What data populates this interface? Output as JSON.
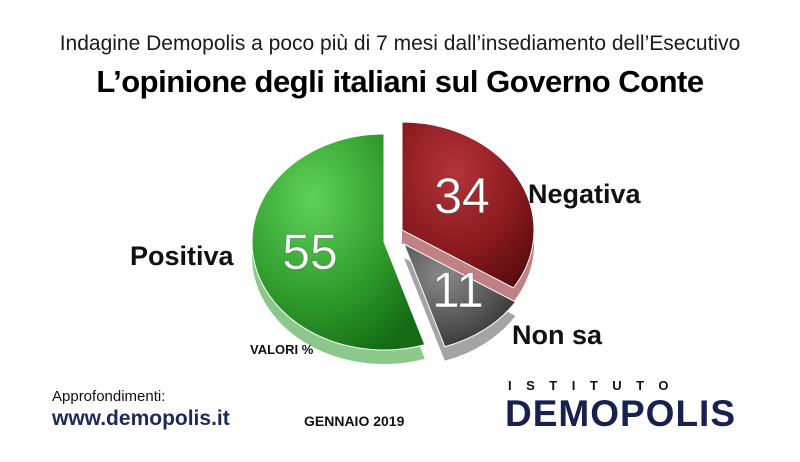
{
  "header": {
    "subtitle": "Indagine Demopolis a poco più di 7 mesi dall’insediamento dell’Esecutivo",
    "title": "L’opinione degli italiani sul Governo Conte"
  },
  "chart_data": {
    "type": "pie",
    "categories": [
      "Positiva",
      "Negativa",
      "Non sa"
    ],
    "values": [
      55,
      34,
      11
    ],
    "colors": [
      "#2e9a2b",
      "#8a1a1e",
      "#5a5a5a"
    ],
    "unit_note": "VALORI %"
  },
  "footer": {
    "approfondimenti": "Approfondimenti:",
    "website": "www.demopolis.it",
    "date": "GENNAIO 2019",
    "logo_top": "ISTITUTO",
    "logo_main": "DEMOPOLIS"
  }
}
